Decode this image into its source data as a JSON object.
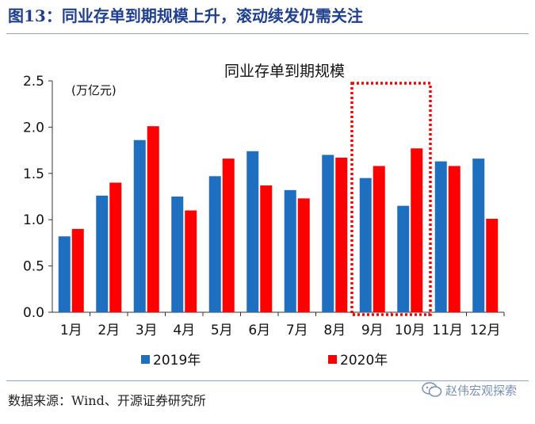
{
  "figure": {
    "title": "图13：同业存单到期规模上升，滚动续发仍需关注",
    "source": "数据来源：Wind、开源证券研究所",
    "watermark": "赵伟宏观探索",
    "watermark_icon": "wechat-icon"
  },
  "chart_data": {
    "type": "bar",
    "title": "同业存单到期规模",
    "unit_label": "(万亿元)",
    "categories": [
      "1月",
      "2月",
      "3月",
      "4月",
      "5月",
      "6月",
      "7月",
      "8月",
      "9月",
      "10月",
      "11月",
      "12月"
    ],
    "series": [
      {
        "name": "2019年",
        "color": "#1f6fc0",
        "values": [
          0.82,
          1.26,
          1.86,
          1.25,
          1.47,
          1.74,
          1.32,
          1.7,
          1.45,
          1.15,
          1.63,
          1.66
        ]
      },
      {
        "name": "2020年",
        "color": "#ff0000",
        "values": [
          0.9,
          1.4,
          2.01,
          1.1,
          1.66,
          1.37,
          1.23,
          1.67,
          1.58,
          1.77,
          1.58,
          1.01
        ]
      }
    ],
    "ylim": [
      0,
      2.5
    ],
    "yticks": [
      "0.0",
      "0.5",
      "1.0",
      "1.5",
      "2.0",
      "2.5"
    ],
    "grid": false,
    "legend": "bottom",
    "highlight": {
      "categories": [
        "9月",
        "10月"
      ],
      "style": "red dotted box"
    }
  }
}
